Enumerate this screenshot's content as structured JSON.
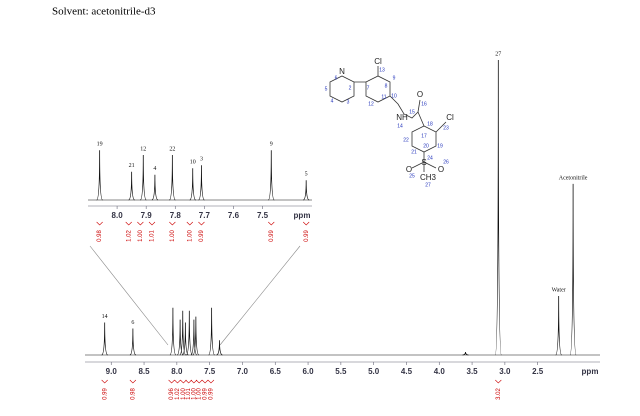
{
  "solvent": "Solvent: acetonitrile-d3",
  "spectrum": {
    "xlim": [
      9.4,
      1.55
    ],
    "xticks": [
      {
        "value": 9,
        "label": "9.0"
      },
      {
        "value": 8.5,
        "label": "8.5"
      },
      {
        "value": 8,
        "label": "8.0"
      },
      {
        "value": 7.5,
        "label": "7.5"
      },
      {
        "value": 7,
        "label": "7.0"
      },
      {
        "value": 6.5,
        "label": "6.5"
      },
      {
        "value": 6,
        "label": "6.0"
      },
      {
        "value": 5.5,
        "label": "5.5"
      },
      {
        "value": 5,
        "label": "5.0"
      },
      {
        "value": 4.5,
        "label": "4.5"
      },
      {
        "value": 4,
        "label": "4.0"
      },
      {
        "value": 3.5,
        "label": "3.5"
      },
      {
        "value": 3,
        "label": "3.0"
      },
      {
        "value": 2.5,
        "label": "2.5"
      }
    ],
    "unit": "ppm",
    "peaks": [
      {
        "label": "14",
        "ppm": 9.1,
        "height": 11
      },
      {
        "label": "6",
        "ppm": 8.67,
        "height": 9
      },
      {
        "label": "27",
        "ppm": 3.1,
        "height": 100
      },
      {
        "label": "Water",
        "ppm": 2.18,
        "height": 20
      },
      {
        "label": "Acetonitrile",
        "ppm": 1.96,
        "height": 58
      }
    ],
    "cluster": [
      {
        "ppm": 8.06,
        "height": 16
      },
      {
        "ppm": 7.95,
        "height": 12
      },
      {
        "ppm": 7.91,
        "height": 15
      },
      {
        "ppm": 7.87,
        "height": 11
      },
      {
        "ppm": 7.81,
        "height": 15
      },
      {
        "ppm": 7.74,
        "height": 12
      },
      {
        "ppm": 7.71,
        "height": 13
      },
      {
        "ppm": 7.47,
        "height": 16
      },
      {
        "ppm": 7.35,
        "height": 5
      },
      {
        "ppm": 3.6,
        "height": 1
      }
    ],
    "integrals": [
      {
        "ppm": 9.1,
        "label": "0.99"
      },
      {
        "ppm": 8.67,
        "label": "0.98"
      },
      {
        "ppm": 8.08,
        "label": "0.96"
      },
      {
        "ppm": 7.99,
        "label": "1.02"
      },
      {
        "ppm": 7.9,
        "label": "1.00"
      },
      {
        "ppm": 7.82,
        "label": "1.01"
      },
      {
        "ppm": 7.74,
        "label": "1.00"
      },
      {
        "ppm": 7.66,
        "label": "1.00"
      },
      {
        "ppm": 7.57,
        "label": "0.99"
      },
      {
        "ppm": 7.48,
        "label": "0.99"
      },
      {
        "ppm": 3.1,
        "label": "3.02"
      }
    ]
  },
  "inset": {
    "xlim": [
      8.1,
      7.33
    ],
    "xticks": [
      {
        "value": 8,
        "label": "8.0"
      },
      {
        "value": 7.9,
        "label": "7.9"
      },
      {
        "value": 7.8,
        "label": "7.8"
      },
      {
        "value": 7.7,
        "label": "7.7"
      },
      {
        "value": 7.6,
        "label": "7.6"
      },
      {
        "value": 7.5,
        "label": "7.5"
      }
    ],
    "unit": "ppm",
    "peaks": [
      {
        "label": "19",
        "ppm": 8.06,
        "height": 83
      },
      {
        "label": "21",
        "ppm": 7.95,
        "height": 47
      },
      {
        "label": "12",
        "ppm": 7.91,
        "height": 75
      },
      {
        "label": "4",
        "ppm": 7.87,
        "height": 42
      },
      {
        "label": "22",
        "ppm": 7.81,
        "height": 75
      },
      {
        "label": "10",
        "ppm": 7.74,
        "height": 53
      },
      {
        "label": "3",
        "ppm": 7.71,
        "height": 58
      },
      {
        "label": "9",
        "ppm": 7.47,
        "height": 83
      },
      {
        "label": "5",
        "ppm": 7.35,
        "height": 33
      }
    ],
    "integrals": [
      {
        "ppm": 8.06,
        "label": "0.98"
      },
      {
        "ppm": 7.96,
        "label": "1.02"
      },
      {
        "ppm": 7.92,
        "label": "1.00"
      },
      {
        "ppm": 7.88,
        "label": "1.01"
      },
      {
        "ppm": 7.81,
        "label": "1.00"
      },
      {
        "ppm": 7.75,
        "label": "1.00"
      },
      {
        "ppm": 7.71,
        "label": "0.99"
      },
      {
        "ppm": 7.47,
        "label": "0.99"
      },
      {
        "ppm": 7.35,
        "label": "0.99"
      }
    ]
  },
  "molecule": {
    "atoms": [
      "N",
      "Cl",
      "NH",
      "O",
      "Cl",
      "S",
      "O",
      "O",
      "CH3"
    ],
    "numbers": [
      "6",
      "5",
      "4",
      "3",
      "2",
      "7",
      "13",
      "8",
      "9",
      "10",
      "11",
      "12",
      "14",
      "15",
      "16",
      "17",
      "18",
      "23",
      "19",
      "20",
      "21",
      "22",
      "24",
      "25",
      "26",
      "27"
    ]
  }
}
